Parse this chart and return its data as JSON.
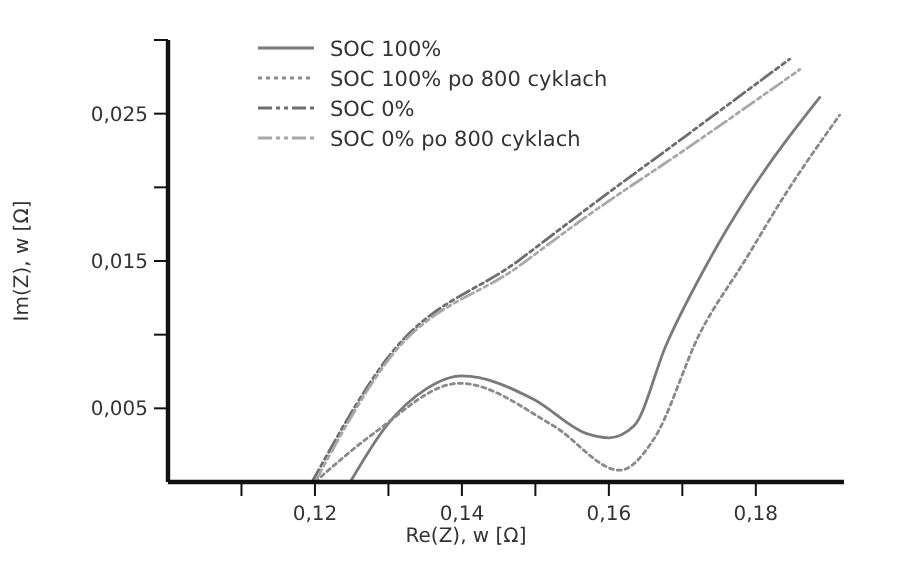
{
  "chart_data": {
    "type": "line",
    "xlabel": "Re(Z), w [Ω]",
    "ylabel": "Im(Z), w [Ω]",
    "xlim": [
      0.1,
      0.192
    ],
    "ylim": [
      0,
      0.03
    ],
    "xticks": [
      {
        "value": 0.11,
        "label": null
      },
      {
        "value": 0.12,
        "label": "0,12"
      },
      {
        "value": 0.13,
        "label": null
      },
      {
        "value": 0.14,
        "label": "0,14"
      },
      {
        "value": 0.15,
        "label": null
      },
      {
        "value": 0.16,
        "label": "0,16"
      },
      {
        "value": 0.17,
        "label": null
      },
      {
        "value": 0.18,
        "label": "0,18"
      }
    ],
    "yticks": [
      {
        "value": 0.005,
        "label": "0,005"
      },
      {
        "value": 0.01,
        "label": null
      },
      {
        "value": 0.015,
        "label": "0,015"
      },
      {
        "value": 0.02,
        "label": null
      },
      {
        "value": 0.025,
        "label": "0,025"
      },
      {
        "value": 0.03,
        "label": null
      }
    ],
    "legend": "top left",
    "grid": false,
    "marker": "none",
    "series": [
      {
        "name": "SOC 100%",
        "color": "#7a7a7a",
        "line_style": "solid",
        "x": [
          0.1248,
          0.1297,
          0.1351,
          0.14,
          0.1498,
          0.1569,
          0.16,
          0.1634,
          0.1678,
          0.1737,
          0.1786,
          0.1887
        ],
        "values": [
          0,
          0.0038,
          0.0063,
          0.0072,
          0.0056,
          0.0033,
          0.003,
          0.0038,
          0.0093,
          0.0151,
          0.0192,
          0.0261
        ]
      },
      {
        "name": "SOC 100% po 800 cyklach",
        "color": "#8a8a8a",
        "line_style": "dotted",
        "x": [
          0.12,
          0.128,
          0.1397,
          0.1525,
          0.1615,
          0.1661,
          0.1724,
          0.1786,
          0.1841,
          0.1914
        ],
        "values": [
          0,
          0.0033,
          0.0067,
          0.0038,
          0.0008,
          0.0029,
          0.0101,
          0.0151,
          0.0196,
          0.0249
        ]
      },
      {
        "name": "SOC 0%",
        "color": "#6e6e6e",
        "line_style": "dashed",
        "x": [
          0.1196,
          0.1297,
          0.1479,
          0.1569,
          0.1705,
          0.1846
        ],
        "values": [
          0,
          0.0083,
          0.0151,
          0.0185,
          0.0235,
          0.0287
        ]
      },
      {
        "name": "SOC 0% po 800 cyklach",
        "color": "#a8a8a8",
        "line_style": "dashed",
        "x": [
          0.12,
          0.1297,
          0.1479,
          0.1569,
          0.1705,
          0.186
        ],
        "values": [
          0,
          0.0081,
          0.0147,
          0.018,
          0.0226,
          0.028
        ]
      }
    ]
  }
}
